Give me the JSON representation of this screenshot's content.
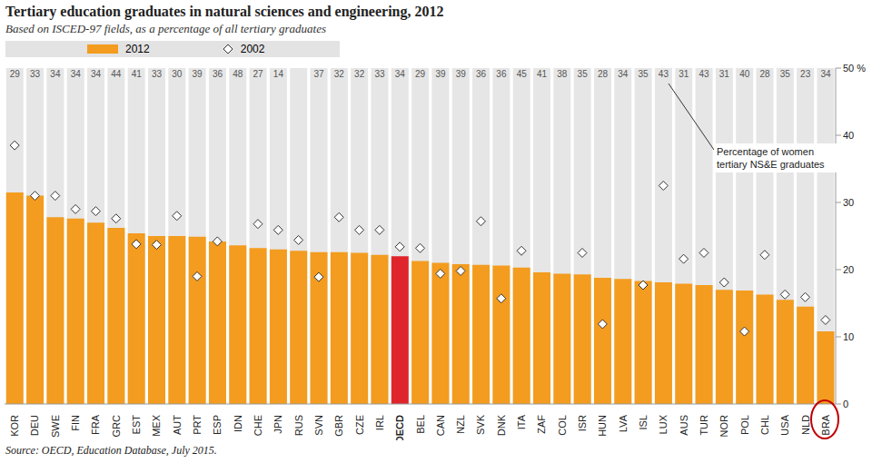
{
  "chart_data": {
    "type": "bar",
    "title": "Tertiary education graduates in natural sciences and engineering, 2012",
    "subtitle": "Based on ISCED-97 fields, as a percentage of all tertiary graduates",
    "source": "Source: OECD, Education Database, July 2015.",
    "legend": "top left",
    "grid": false,
    "categories": [
      "KOR",
      "DEU",
      "SWE",
      "FIN",
      "FRA",
      "GRC",
      "EST",
      "MEX",
      "AUT",
      "PRT",
      "ESP",
      "IDN",
      "CHE",
      "JPN",
      "RUS",
      "SVN",
      "GBR",
      "CZE",
      "IRL",
      "OECD",
      "BEL",
      "CAN",
      "NZL",
      "SVK",
      "DNK",
      "ITA",
      "ZAF",
      "COL",
      "ISR",
      "HUN",
      "LVA",
      "ISL",
      "LUX",
      "AUS",
      "TUR",
      "NOR",
      "POL",
      "CHL",
      "USA",
      "NLD",
      "BRA"
    ],
    "series": [
      {
        "name": "2012",
        "type": "bar",
        "color": "#f39c1f",
        "colors": [
          "#f39c1f",
          "#f39c1f",
          "#f39c1f",
          "#f39c1f",
          "#f39c1f",
          "#f39c1f",
          "#f39c1f",
          "#f39c1f",
          "#f39c1f",
          "#f39c1f",
          "#f39c1f",
          "#f39c1f",
          "#f39c1f",
          "#f39c1f",
          "#f39c1f",
          "#f39c1f",
          "#f39c1f",
          "#f39c1f",
          "#f39c1f",
          "#e0242b",
          "#f39c1f",
          "#f39c1f",
          "#f39c1f",
          "#f39c1f",
          "#f39c1f",
          "#f39c1f",
          "#f39c1f",
          "#f39c1f",
          "#f39c1f",
          "#f39c1f",
          "#f39c1f",
          "#f39c1f",
          "#f39c1f",
          "#f39c1f",
          "#f39c1f",
          "#f39c1f",
          "#f39c1f",
          "#f39c1f",
          "#f39c1f",
          "#f39c1f",
          "#f39c1f"
        ],
        "values": [
          31.5,
          31,
          27.8,
          27.6,
          27,
          26.2,
          25.4,
          25,
          25,
          24.9,
          24.2,
          23.6,
          23.2,
          23,
          22.8,
          22.6,
          22.6,
          22.5,
          22.2,
          22,
          21.3,
          21,
          20.8,
          20.7,
          20.6,
          20.3,
          19.6,
          19.4,
          19.3,
          18.8,
          18.6,
          18.3,
          18.1,
          17.9,
          17.7,
          17,
          16.9,
          16.3,
          15.5,
          14.5,
          10.8
        ]
      },
      {
        "name": "2002",
        "type": "scatter",
        "marker": "diamond",
        "color": "#ffffff",
        "values": [
          38.5,
          31,
          31,
          29,
          28.7,
          27.6,
          23.8,
          23.7,
          28,
          19,
          24.2,
          null,
          26.8,
          25.9,
          24.4,
          18.9,
          27.8,
          25.9,
          25.9,
          23.4,
          23.2,
          19.4,
          19.8,
          27.2,
          15.7,
          22.8,
          null,
          null,
          22.5,
          11.9,
          null,
          17.7,
          32.5,
          21.6,
          22.5,
          18.1,
          10.8,
          22.2,
          16.3,
          15.9,
          12.5
        ]
      }
    ],
    "women_share": {
      "label": "Percentage of women tertiary NS&E graduates",
      "values": [
        29,
        33,
        34,
        34,
        34,
        44,
        41,
        33,
        30,
        39,
        36,
        48,
        27,
        14,
        null,
        37,
        32,
        32,
        33,
        34,
        29,
        39,
        39,
        36,
        36,
        45,
        41,
        38,
        35,
        28,
        34,
        35,
        43,
        31,
        43,
        31,
        40,
        28,
        35,
        23,
        34
      ]
    },
    "ylim": [
      0,
      50
    ],
    "yticks": [
      0,
      10,
      20,
      30,
      40,
      {
        "value": 50,
        "label": "50 %"
      }
    ]
  }
}
